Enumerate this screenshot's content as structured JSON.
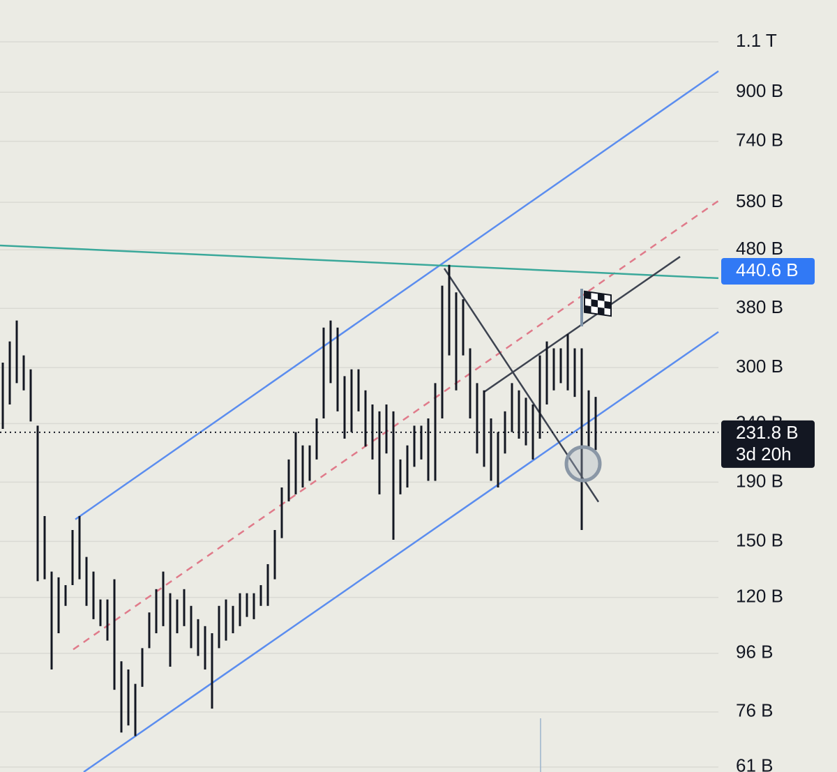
{
  "chart_data": {
    "type": "range",
    "log_scale": true,
    "ylim": [
      59.8,
      1300
    ],
    "xlim": [
      0,
      103
    ],
    "yticks": [
      {
        "value": 1100,
        "label": "1.1 T"
      },
      {
        "value": 900,
        "label": "900 B"
      },
      {
        "value": 740,
        "label": "740 B"
      },
      {
        "value": 580,
        "label": "580 B"
      },
      {
        "value": 480,
        "label": "480 B"
      },
      {
        "value": 380,
        "label": "380 B"
      },
      {
        "value": 300,
        "label": "300 B"
      },
      {
        "value": 240,
        "label": "240 B"
      },
      {
        "value": 190,
        "label": "190 B"
      },
      {
        "value": 150,
        "label": "150 B"
      },
      {
        "value": 120,
        "label": "120 B"
      },
      {
        "value": 96,
        "label": "96 B"
      },
      {
        "value": 76,
        "label": "76 B"
      },
      {
        "value": 61,
        "label": "61 B"
      }
    ],
    "grid": true,
    "color": "#131722",
    "x": [
      0,
      1,
      2,
      3,
      4,
      5,
      6,
      7,
      8,
      9,
      10,
      11,
      12,
      13,
      14,
      15,
      16,
      17,
      18,
      19,
      20,
      21,
      22,
      23,
      24,
      25,
      26,
      27,
      28,
      29,
      30,
      31,
      32,
      33,
      34,
      35,
      36,
      37,
      38,
      39,
      40,
      41,
      42,
      43,
      44,
      45,
      46,
      47,
      48,
      49,
      50,
      51,
      52,
      53,
      54,
      55,
      56,
      57,
      58,
      59,
      60,
      61,
      62,
      63,
      64,
      65,
      66,
      67,
      68,
      69,
      70,
      71,
      72,
      73,
      74,
      75,
      76,
      77,
      78,
      79,
      80,
      81,
      82,
      83,
      84,
      85
    ],
    "high": [
      306,
      333,
      362,
      315,
      298,
      238,
      166,
      133,
      130,
      126,
      157,
      166,
      141,
      133,
      119,
      119,
      129,
      93,
      90,
      85,
      98,
      113,
      124,
      133,
      122,
      119,
      124,
      116,
      110,
      107,
      104,
      116,
      119,
      116,
      122,
      122,
      122,
      126,
      137,
      157,
      186,
      208,
      232,
      220,
      220,
      245,
      352,
      362,
      352,
      290,
      298,
      298,
      274,
      259,
      252,
      259,
      252,
      208,
      220,
      238,
      238,
      245,
      282,
      416,
      452,
      405,
      394,
      324,
      282,
      274,
      245,
      232,
      252,
      282,
      274,
      266,
      259,
      315,
      333,
      324,
      324,
      343,
      324,
      324,
      274,
      267
    ],
    "low": [
      235,
      259,
      282,
      274,
      242,
      128,
      129,
      90,
      104,
      116,
      126,
      129,
      116,
      110,
      107,
      101,
      83,
      70,
      72,
      69,
      84,
      98,
      104,
      107,
      91,
      104,
      107,
      98,
      95,
      90,
      77,
      98,
      101,
      104,
      107,
      111,
      110,
      116,
      116,
      129,
      152,
      176,
      181,
      186,
      191,
      208,
      245,
      282,
      252,
      226,
      232,
      252,
      219,
      208,
      181,
      213,
      151,
      181,
      186,
      202,
      208,
      191,
      191,
      245,
      315,
      274,
      315,
      245,
      213,
      202,
      191,
      186,
      213,
      232,
      226,
      220,
      208,
      226,
      259,
      274,
      282,
      274,
      267,
      157,
      219,
      216
    ],
    "drawings": [
      {
        "color": "#5b8def",
        "x": [
          10.8,
          103
        ],
        "values": [
          163.8,
          978.8
        ]
      },
      {
        "color": "#5b8def",
        "x": [
          12,
          103
        ],
        "values": [
          59.8,
          346
        ]
      },
      {
        "color": "#e07a8a",
        "dashed": true,
        "x": [
          10.5,
          103
        ],
        "values": [
          97.5,
          583.6
        ]
      },
      {
        "color": "#3aa89a",
        "x": [
          0,
          103
        ],
        "values": [
          488.4,
          428.6
        ]
      },
      {
        "color": "#3d4350",
        "x": [
          63.7,
          85.8
        ],
        "values": [
          445.6,
          175.6
        ]
      },
      {
        "color": "#3d4350",
        "x": [
          69.3,
          97.5
        ],
        "values": [
          271.7,
          467
        ]
      }
    ],
    "price_lines": [
      {
        "value": 231.8,
        "label": "231.8 B",
        "countdown": "3d 20h",
        "color": "#131722",
        "dotted": true
      },
      {
        "value": 440.6,
        "label": "440.6 B",
        "color": "#3179f5"
      }
    ]
  }
}
